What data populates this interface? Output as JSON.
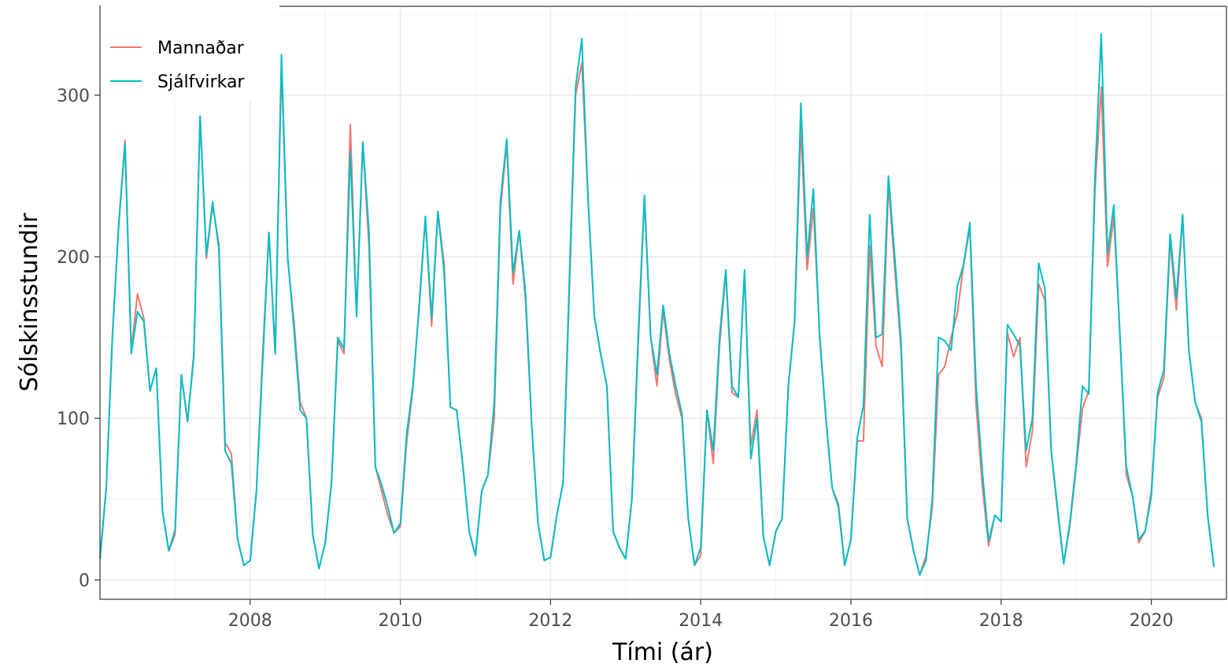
{
  "chart_data": {
    "type": "line",
    "xlabel": "Tími (ár)",
    "ylabel": "Sólskinsstundir",
    "xlim": [
      2006.0,
      2021.0
    ],
    "ylim": [
      -12,
      355
    ],
    "x_ticks": [
      2008,
      2010,
      2012,
      2014,
      2016,
      2018,
      2020
    ],
    "y_ticks": [
      0,
      100,
      200,
      300
    ],
    "grid": true,
    "legend_position": "top-left",
    "series": [
      {
        "name": "Mannaðar",
        "color": "#F8766D",
        "start": "2006-01",
        "frequency": "monthly",
        "values": [
          13,
          57,
          152,
          220,
          272,
          142,
          177,
          162,
          117,
          131,
          42,
          18,
          28,
          127,
          98,
          138,
          287,
          199,
          232,
          208,
          85,
          78,
          25,
          9,
          12,
          55,
          140,
          215,
          140,
          318,
          198,
          160,
          110,
          100,
          28,
          7,
          23,
          60,
          148,
          140,
          282,
          163,
          271,
          205,
          70,
          55,
          40,
          29,
          33,
          85,
          118,
          170,
          224,
          157,
          228,
          195,
          107,
          105,
          70,
          30,
          15,
          55,
          65,
          100,
          230,
          270,
          183,
          216,
          173,
          95,
          35,
          12,
          14,
          40,
          60,
          178,
          300,
          320,
          235,
          163,
          140,
          120,
          30,
          20,
          13,
          50,
          145,
          236,
          150,
          120,
          167,
          136,
          115,
          100,
          38,
          9,
          15,
          105,
          72,
          145,
          190,
          116,
          113,
          190,
          83,
          105,
          27,
          9,
          30,
          38,
          120,
          160,
          280,
          192,
          230,
          152,
          100,
          57,
          47,
          9,
          25,
          86,
          86,
          207,
          145,
          132,
          245,
          193,
          143,
          38,
          18,
          3,
          15,
          45,
          127,
          132,
          150,
          165,
          195,
          218,
          108,
          58,
          21,
          40,
          36,
          153,
          138,
          150,
          70,
          92,
          183,
          173,
          80,
          43,
          10,
          34,
          70,
          106,
          117,
          242,
          305,
          194,
          225,
          150,
          65,
          52,
          23,
          30,
          55,
          113,
          125,
          210,
          167,
          225,
          142,
          110,
          100,
          40,
          8
        ]
      },
      {
        "name": "Sjálfvirkar",
        "color": "#00BFC4",
        "start": "2006-01",
        "frequency": "monthly",
        "values": [
          13,
          57,
          152,
          220,
          270,
          140,
          166,
          160,
          117,
          131,
          42,
          18,
          31,
          127,
          98,
          140,
          287,
          201,
          234,
          205,
          80,
          72,
          25,
          9,
          12,
          55,
          135,
          215,
          140,
          325,
          200,
          155,
          105,
          100,
          28,
          7,
          23,
          60,
          150,
          143,
          265,
          163,
          271,
          215,
          70,
          59,
          45,
          29,
          35,
          90,
          120,
          168,
          225,
          162,
          228,
          190,
          107,
          105,
          70,
          30,
          15,
          55,
          65,
          110,
          235,
          273,
          190,
          216,
          178,
          95,
          35,
          12,
          14,
          40,
          60,
          185,
          305,
          335,
          235,
          163,
          140,
          120,
          30,
          20,
          13,
          50,
          150,
          238,
          150,
          127,
          170,
          140,
          120,
          103,
          38,
          9,
          20,
          105,
          80,
          150,
          192,
          120,
          113,
          192,
          75,
          100,
          27,
          9,
          30,
          38,
          120,
          160,
          295,
          200,
          242,
          150,
          100,
          57,
          45,
          9,
          25,
          88,
          108,
          226,
          150,
          152,
          250,
          200,
          148,
          38,
          18,
          3,
          12,
          50,
          150,
          148,
          142,
          182,
          195,
          221,
          120,
          67,
          24,
          40,
          36,
          158,
          152,
          145,
          80,
          100,
          196,
          180,
          80,
          45,
          10,
          36,
          72,
          120,
          115,
          250,
          338,
          202,
          232,
          150,
          70,
          52,
          25,
          30,
          52,
          116,
          130,
          214,
          174,
          226,
          142,
          110,
          98,
          40,
          8
        ]
      }
    ]
  }
}
